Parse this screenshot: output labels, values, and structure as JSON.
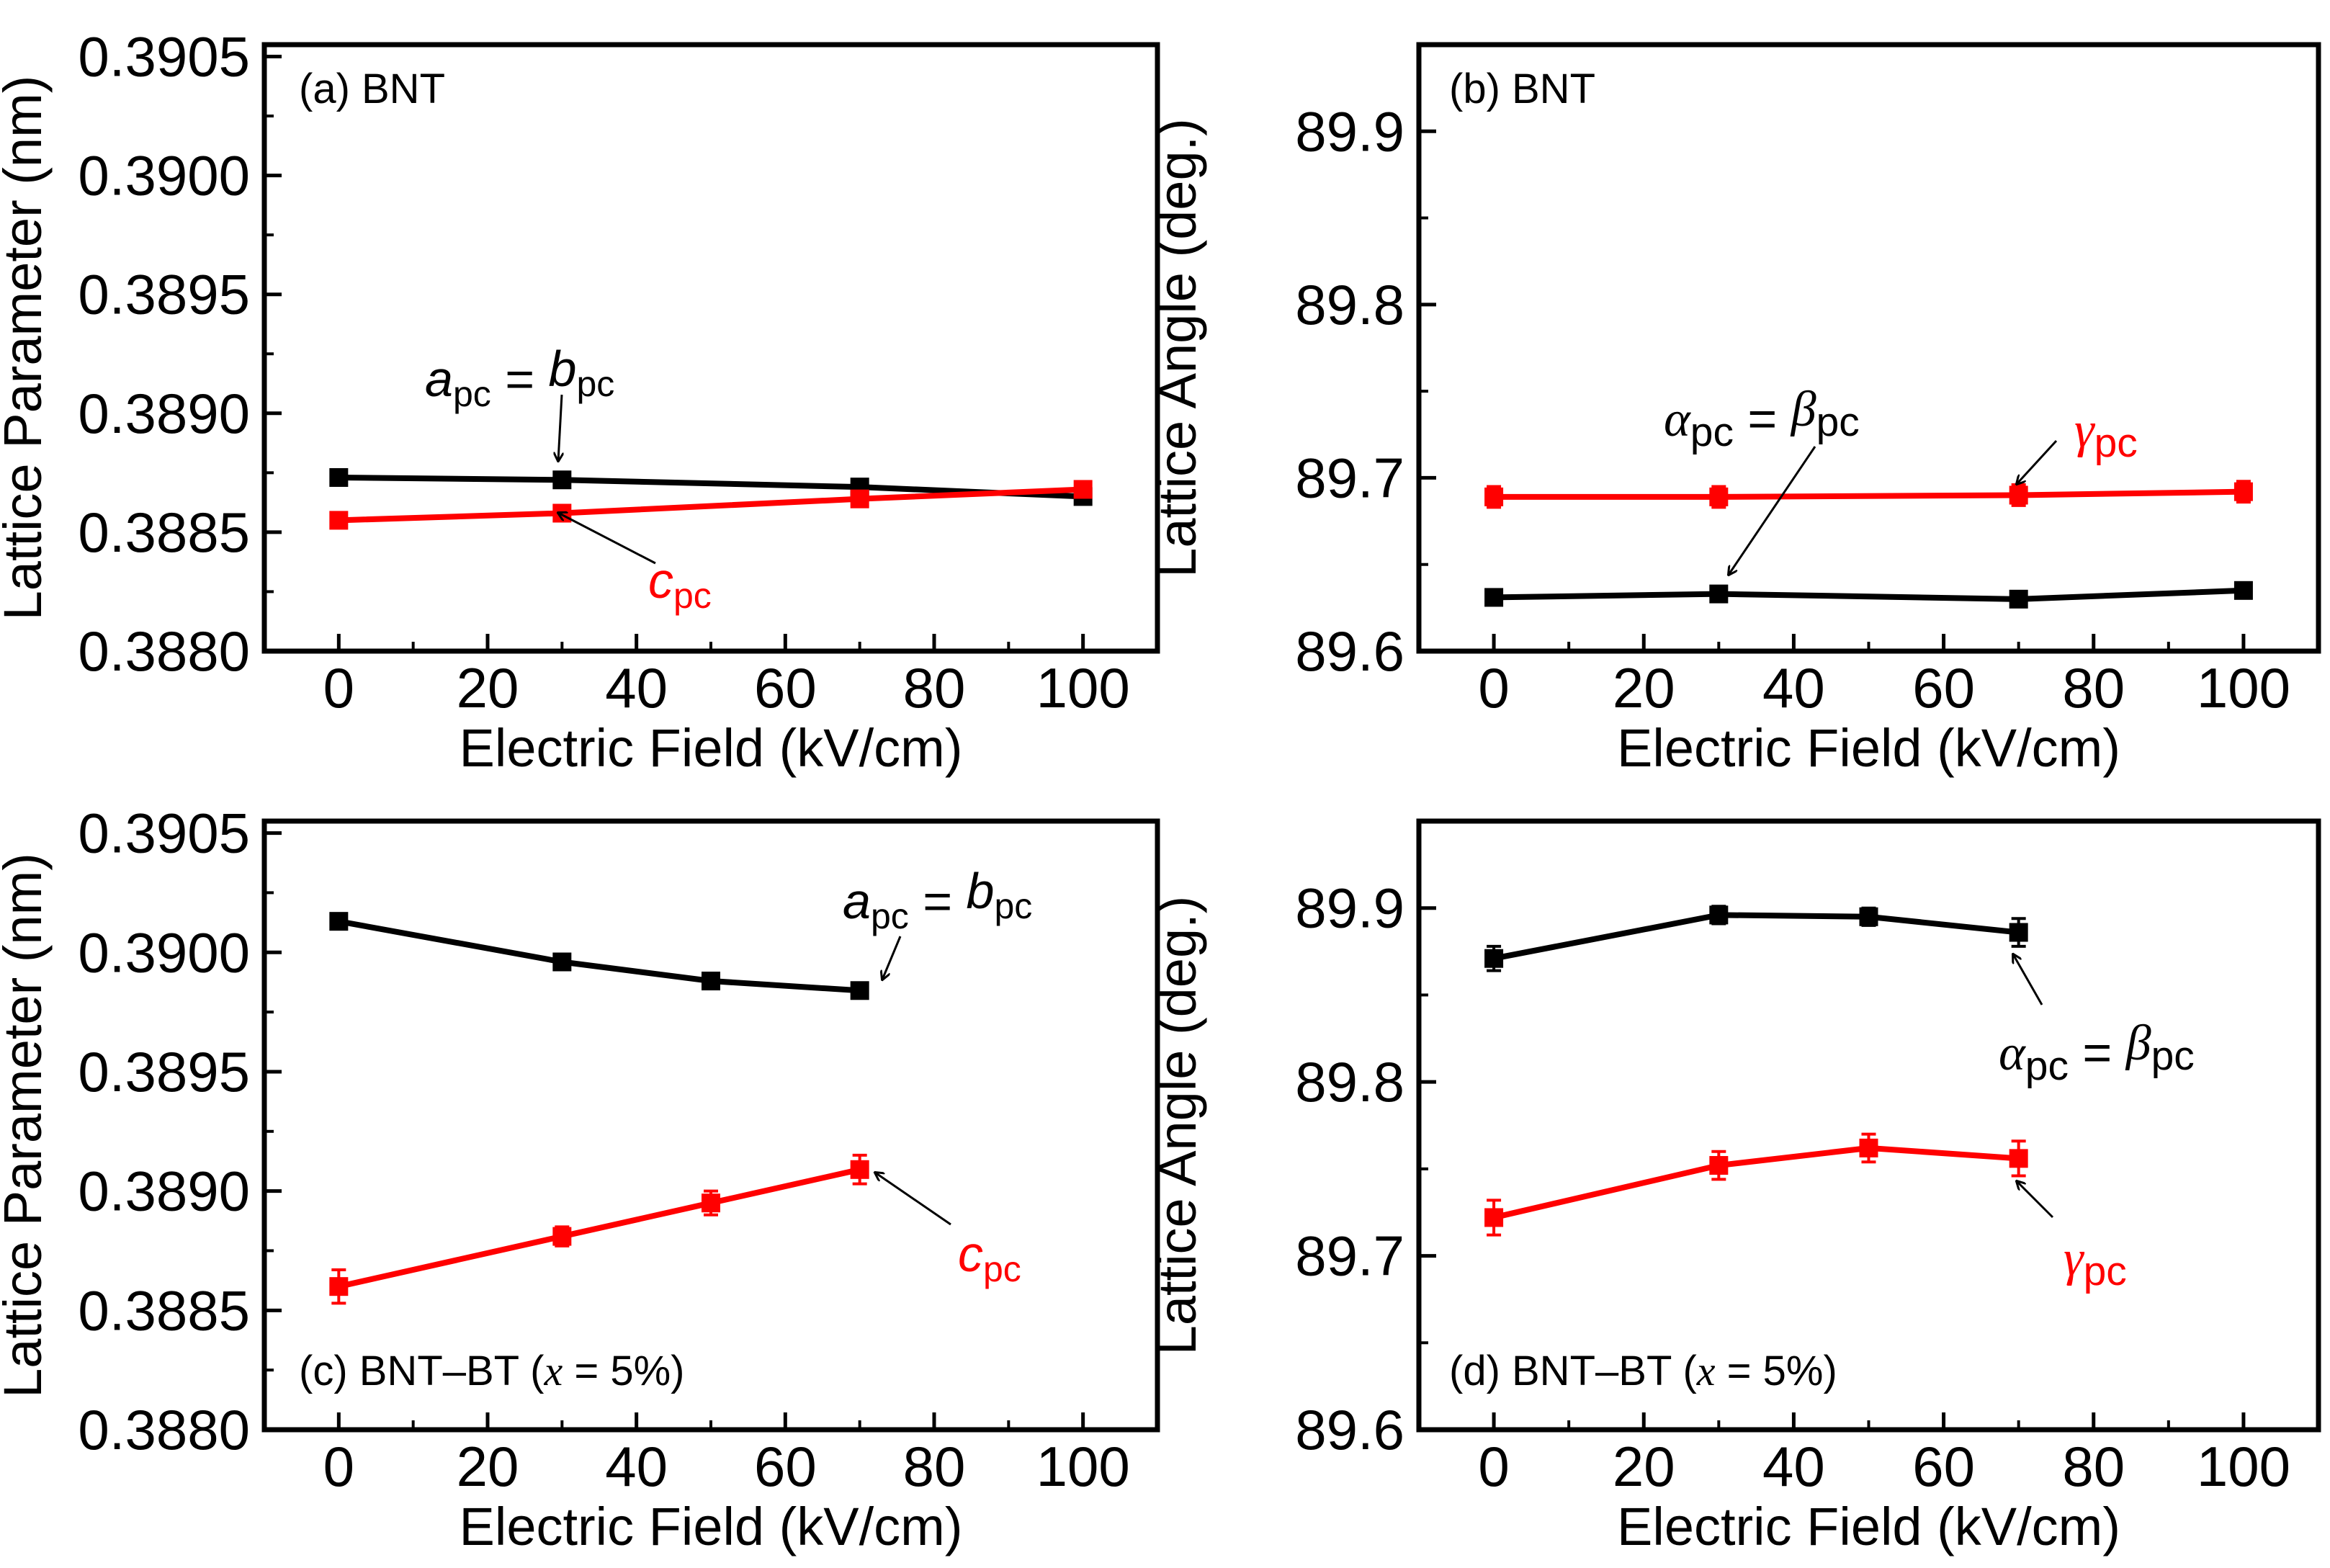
{
  "colors": {
    "black_series": "#000000",
    "red_series": "#ff0000",
    "frame": "#000000"
  },
  "chart_data": [
    {
      "panel": "a",
      "type": "line",
      "panel_label": "(a) BNT",
      "xlabel": "Electric Field (kV/cm)",
      "ylabel": "Lattice Parameter (nm)",
      "xlim": [
        -10,
        110
      ],
      "ylim": [
        0.388,
        0.39055
      ],
      "xticks": [
        "0",
        "20",
        "40",
        "60",
        "80",
        "100"
      ],
      "yticks": [
        "0.3880",
        "0.3885",
        "0.3890",
        "0.3895",
        "0.3900",
        "0.3905"
      ],
      "series": [
        {
          "name": "a_pc = b_pc",
          "color": "black",
          "x": [
            0,
            30,
            70,
            100
          ],
          "y": [
            0.38873,
            0.38872,
            0.38869,
            0.38865
          ],
          "err": [
            2e-05,
            2e-05,
            2e-05,
            2e-05
          ]
        },
        {
          "name": "c_pc",
          "color": "red",
          "x": [
            0,
            30,
            70,
            100
          ],
          "y": [
            0.38855,
            0.38858,
            0.38864,
            0.38868
          ],
          "err": [
            2e-05,
            2e-05,
            2e-05,
            2e-05
          ]
        }
      ],
      "annotations": [
        {
          "parts": [
            "a",
            "pc",
            " = ",
            "b",
            "pc"
          ],
          "color": "black"
        },
        {
          "parts": [
            "c",
            "pc"
          ],
          "color": "red"
        }
      ]
    },
    {
      "panel": "b",
      "type": "line",
      "panel_label": "(b) BNT",
      "xlabel": "Electric Field (kV/cm)",
      "ylabel": "Lattice Angle (deg.)",
      "xlim": [
        -10,
        110
      ],
      "ylim": [
        89.6,
        89.95
      ],
      "xticks": [
        "0",
        "20",
        "40",
        "60",
        "80",
        "100"
      ],
      "yticks": [
        "89.6",
        "89.7",
        "89.8",
        "89.9"
      ],
      "series": [
        {
          "name": "α_pc = β_pc",
          "color": "black",
          "x": [
            0,
            30,
            70,
            100
          ],
          "y": [
            89.631,
            89.633,
            89.63,
            89.635
          ],
          "err": [
            0.003,
            0.003,
            0.003,
            0.003
          ]
        },
        {
          "name": "γ_pc",
          "color": "red",
          "x": [
            0,
            30,
            70,
            100
          ],
          "y": [
            89.689,
            89.689,
            89.69,
            89.692
          ],
          "err": [
            0.006,
            0.006,
            0.006,
            0.006
          ]
        }
      ],
      "annotations": [
        {
          "parts": [
            "α",
            "pc",
            " = ",
            "β",
            "pc"
          ],
          "color": "black"
        },
        {
          "parts": [
            "γ",
            "pc"
          ],
          "color": "red"
        }
      ]
    },
    {
      "panel": "c",
      "type": "line",
      "panel_label": "(c) BNT–BT (x = 5%)",
      "xlabel": "Electric Field (kV/cm)",
      "ylabel": "Lattice Parameter (nm)",
      "xlim": [
        -10,
        110
      ],
      "ylim": [
        0.388,
        0.39055
      ],
      "xticks": [
        "0",
        "20",
        "40",
        "60",
        "80",
        "100"
      ],
      "yticks": [
        "0.3880",
        "0.3885",
        "0.3890",
        "0.3895",
        "0.3900",
        "0.3905"
      ],
      "series": [
        {
          "name": "a_pc = b_pc",
          "color": "black",
          "x": [
            0,
            30,
            50,
            70
          ],
          "y": [
            0.39013,
            0.38996,
            0.38988,
            0.38984
          ],
          "err": [
            2e-05,
            2e-05,
            2e-05,
            2e-05
          ]
        },
        {
          "name": "c_pc",
          "color": "red",
          "x": [
            0,
            30,
            50,
            70
          ],
          "y": [
            0.3886,
            0.38881,
            0.38895,
            0.38909
          ],
          "err": [
            7e-05,
            4e-05,
            5e-05,
            6e-05
          ]
        }
      ],
      "annotations": [
        {
          "parts": [
            "a",
            "pc",
            " = ",
            "b",
            "pc"
          ],
          "color": "black"
        },
        {
          "parts": [
            "c",
            "pc"
          ],
          "color": "red"
        }
      ]
    },
    {
      "panel": "d",
      "type": "line",
      "panel_label": "(d) BNT–BT (x = 5%)",
      "xlabel": "Electric Field (kV/cm)",
      "ylabel": "Lattice Angle (deg.)",
      "xlim": [
        -10,
        110
      ],
      "ylim": [
        89.6,
        89.95
      ],
      "xticks": [
        "0",
        "20",
        "40",
        "60",
        "80",
        "100"
      ],
      "yticks": [
        "89.6",
        "89.7",
        "89.8",
        "89.9"
      ],
      "series": [
        {
          "name": "α_pc = β_pc",
          "color": "black",
          "x": [
            0,
            30,
            50,
            70
          ],
          "y": [
            89.871,
            89.896,
            89.895,
            89.886
          ],
          "err": [
            0.007,
            0.005,
            0.005,
            0.008
          ]
        },
        {
          "name": "γ_pc",
          "color": "red",
          "x": [
            0,
            30,
            50,
            70
          ],
          "y": [
            89.722,
            89.752,
            89.762,
            89.756
          ],
          "err": [
            0.01,
            0.008,
            0.008,
            0.01
          ]
        }
      ],
      "annotations": [
        {
          "parts": [
            "α",
            "pc",
            " = ",
            "β",
            "pc"
          ],
          "color": "black"
        },
        {
          "parts": [
            "γ",
            "pc"
          ],
          "color": "red"
        }
      ]
    }
  ]
}
